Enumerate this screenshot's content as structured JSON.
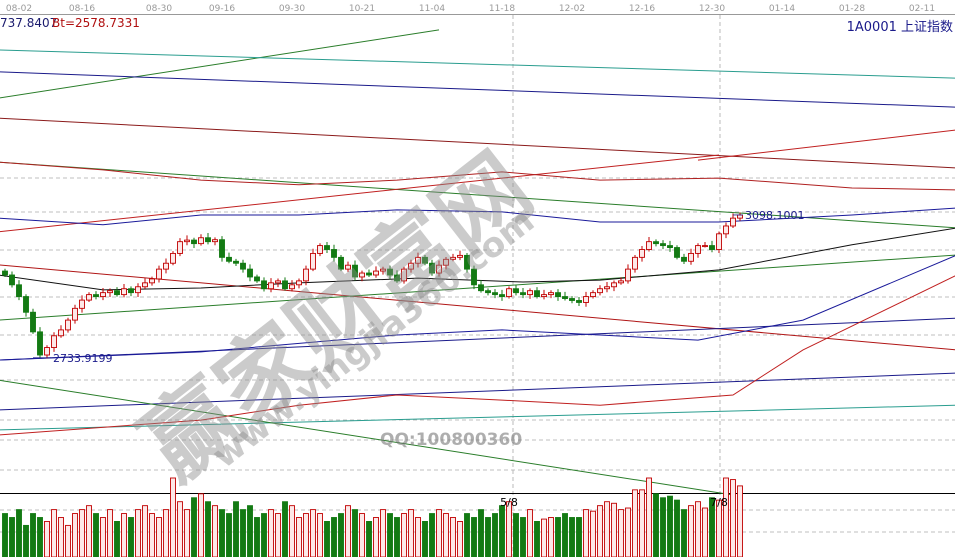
{
  "header": {
    "value": "737.8407",
    "bt": "Bt=2578.7331",
    "code": "1A0001 上证指数"
  },
  "watermark": {
    "main": "赢家财富网",
    "url": "www.yingjia360.com",
    "qq": "QQ:100800360"
  },
  "colors": {
    "up": "#c00000",
    "up_fill": "#fde8e8",
    "down": "#137a13",
    "grid": "#aaaaaa"
  },
  "chart_data": {
    "type": "candlestick",
    "x_ticks": [
      {
        "label": "08-02",
        "index": 2
      },
      {
        "label": "08-16",
        "index": 11
      },
      {
        "label": "08-30",
        "index": 22
      },
      {
        "label": "09-16",
        "index": 31
      },
      {
        "label": "09-30",
        "index": 41
      },
      {
        "label": "10-21",
        "index": 51
      },
      {
        "label": "11-04",
        "index": 61
      },
      {
        "label": "11-18",
        "index": 71
      },
      {
        "label": "12-02",
        "index": 81
      },
      {
        "label": "12-16",
        "index": 91
      },
      {
        "label": "12-30",
        "index": 101
      },
      {
        "label": "01-14",
        "index": 111
      },
      {
        "label": "01-28",
        "index": 121
      },
      {
        "label": "02-11",
        "index": 131
      }
    ],
    "closes": [
      2945,
      2920,
      2890,
      2850,
      2800,
      2741,
      2760,
      2790,
      2805,
      2830,
      2860,
      2881,
      2895,
      2890,
      2900,
      2905,
      2895,
      2910,
      2900,
      2915,
      2925,
      2935,
      2960,
      2975,
      3000,
      3030,
      3034,
      3025,
      3040,
      3030,
      3035,
      2990,
      2980,
      2975,
      2960,
      2940,
      2930,
      2910,
      2925,
      2930,
      2910,
      2920,
      2930,
      2960,
      3000,
      3020,
      3010,
      2990,
      2960,
      2970,
      2940,
      2950,
      2945,
      2955,
      2960,
      2945,
      2930,
      2960,
      2975,
      2990,
      2975,
      2950,
      2970,
      2985,
      2990,
      2995,
      2960,
      2920,
      2905,
      2900,
      2895,
      2890,
      2910,
      2900,
      2895,
      2905,
      2890,
      2895,
      2900,
      2890,
      2885,
      2880,
      2875,
      2890,
      2900,
      2910,
      2915,
      2925,
      2930,
      2960,
      2990,
      3010,
      3030,
      3025,
      3020,
      3015,
      2990,
      2980,
      3000,
      3020,
      3020,
      3010,
      3050,
      3070,
      3090,
      3098
    ],
    "volumes": [
      55,
      50,
      60,
      40,
      55,
      50,
      45,
      60,
      50,
      40,
      55,
      60,
      65,
      55,
      50,
      60,
      45,
      55,
      50,
      60,
      65,
      55,
      50,
      60,
      100,
      70,
      60,
      75,
      80,
      70,
      65,
      60,
      55,
      70,
      60,
      65,
      50,
      55,
      60,
      55,
      70,
      65,
      50,
      55,
      60,
      55,
      45,
      50,
      55,
      65,
      60,
      55,
      45,
      50,
      60,
      55,
      50,
      55,
      60,
      50,
      45,
      55,
      60,
      55,
      50,
      45,
      55,
      50,
      60,
      50,
      55,
      65,
      70,
      55,
      50,
      60,
      45,
      48,
      50,
      50,
      55,
      50,
      50,
      60,
      58,
      65,
      70,
      68,
      60,
      62,
      85,
      85,
      100,
      80,
      75,
      77,
      72,
      60,
      65,
      70,
      62,
      75,
      72,
      100,
      98,
      90
    ],
    "annotations": [
      {
        "text": "2733.9199",
        "index": 4,
        "price": 2733.9199
      },
      {
        "text": "3098.1001",
        "index": 104,
        "price": 3098.1001
      },
      {
        "text": "5/8",
        "index": 72,
        "panel": "volume"
      },
      {
        "text": "7/8",
        "index": 102,
        "panel": "volume"
      }
    ],
    "trend_lines": [
      {
        "color": "#2a7d2a",
        "points": [
          [
            -1,
            3396
          ],
          [
            62,
            3570
          ]
        ]
      },
      {
        "color": "#2a9d8f",
        "points": [
          [
            -1,
            3519
          ],
          [
            136,
            3447
          ]
        ]
      },
      {
        "color": "#1a1a8a",
        "points": [
          [
            -1,
            3463
          ],
          [
            136,
            3373
          ]
        ]
      },
      {
        "color": "#8b1a1a",
        "points": [
          [
            -1,
            3345
          ],
          [
            136,
            3218
          ]
        ]
      },
      {
        "color": "#c02020",
        "points": [
          [
            99,
            3238
          ],
          [
            136,
            3315
          ]
        ]
      },
      {
        "color": "#2a7d2a",
        "points": [
          [
            -1,
            3233
          ],
          [
            136,
            3065
          ]
        ]
      },
      {
        "color": "#c02020",
        "points": [
          [
            -1,
            3055
          ],
          [
            102,
            3251
          ]
        ]
      },
      {
        "color": "#b01515",
        "points": [
          [
            -1,
            2971
          ],
          [
            136,
            2754
          ]
        ]
      },
      {
        "color": "#2a7d2a",
        "points": [
          [
            -1,
            2830
          ],
          [
            136,
            2996
          ]
        ]
      },
      {
        "color": "#1a1a8a",
        "points": [
          [
            -1,
            2728
          ],
          [
            136,
            2835
          ]
        ]
      },
      {
        "color": "#1a1a8a",
        "points": [
          [
            -1,
            2601
          ],
          [
            136,
            2695
          ]
        ]
      },
      {
        "color": "#2a9d8f",
        "points": [
          [
            -1,
            2550
          ],
          [
            136,
            2613
          ]
        ]
      },
      {
        "color": "#2a7d2a",
        "points": [
          [
            -1,
            2677
          ],
          [
            104,
            2384
          ]
        ]
      }
    ],
    "curves": [
      {
        "color": "#111111",
        "points": [
          [
            -1,
            2945
          ],
          [
            14,
            2907
          ],
          [
            28,
            2912
          ],
          [
            42,
            2925
          ],
          [
            59,
            2937
          ],
          [
            74,
            2927
          ],
          [
            85,
            2932
          ],
          [
            102,
            2958
          ],
          [
            121,
            3022
          ],
          [
            136,
            3065
          ]
        ]
      },
      {
        "color": "#1a1a9a",
        "points": [
          [
            -1,
            3090
          ],
          [
            14,
            3073
          ],
          [
            28,
            3098
          ],
          [
            42,
            3098
          ],
          [
            56,
            3111
          ],
          [
            71,
            3106
          ],
          [
            85,
            3080
          ],
          [
            102,
            3080
          ],
          [
            121,
            3098
          ],
          [
            136,
            3116
          ]
        ]
      },
      {
        "color": "#b02020",
        "points": [
          [
            -1,
            3233
          ],
          [
            14,
            3213
          ],
          [
            28,
            3187
          ],
          [
            42,
            3175
          ],
          [
            56,
            3187
          ],
          [
            71,
            3208
          ],
          [
            85,
            3187
          ],
          [
            102,
            3192
          ],
          [
            121,
            3167
          ],
          [
            136,
            3162
          ]
        ]
      },
      {
        "color": "#1a1a9a",
        "points": [
          [
            -1,
            2728
          ],
          [
            28,
            2749
          ],
          [
            56,
            2792
          ],
          [
            71,
            2805
          ],
          [
            85,
            2792
          ],
          [
            99,
            2779
          ],
          [
            114,
            2830
          ],
          [
            136,
            2996
          ]
        ]
      },
      {
        "color": "#c02020",
        "points": [
          [
            -1,
            2537
          ],
          [
            28,
            2575
          ],
          [
            42,
            2613
          ],
          [
            56,
            2639
          ],
          [
            71,
            2626
          ],
          [
            85,
            2613
          ],
          [
            104,
            2639
          ],
          [
            114,
            2754
          ],
          [
            136,
            2945
          ]
        ]
      }
    ]
  }
}
